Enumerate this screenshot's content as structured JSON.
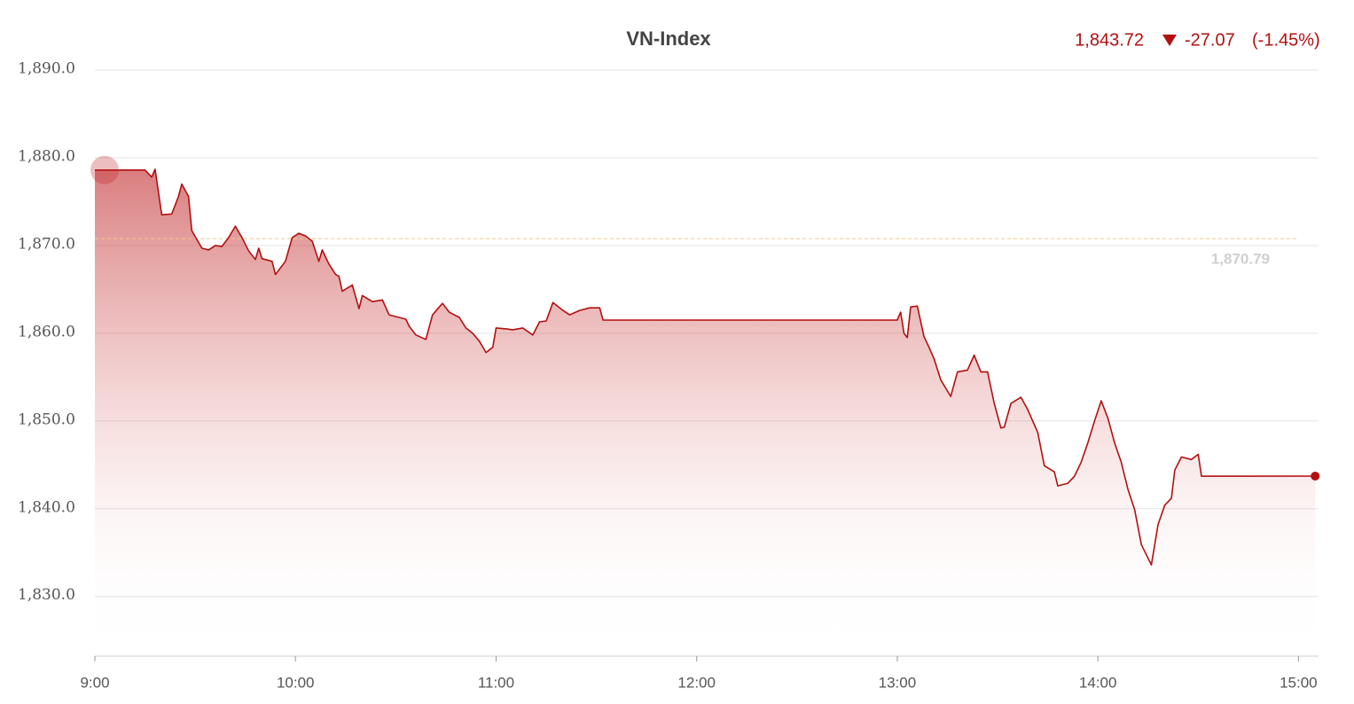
{
  "chart_data": {
    "type": "line",
    "title": "VN-Index",
    "last": "1,843.72",
    "change": "-27.07",
    "change_pct": "(-1.45%)",
    "color": "#b30f0f",
    "reference": {
      "value": 1870.79,
      "label": "1,870.79"
    },
    "xlim": [
      "9:00",
      "15:06"
    ],
    "xticks": [
      "9:00",
      "10:00",
      "11:00",
      "12:00",
      "13:00",
      "14:00",
      "15:00"
    ],
    "ylim": [
      1823.2,
      1890
    ],
    "yticks": [
      {
        "value": 1830,
        "label": "1,830.0"
      },
      {
        "value": 1840,
        "label": "1,840.0"
      },
      {
        "value": 1850,
        "label": "1,850.0"
      },
      {
        "value": 1860,
        "label": "1,860.0"
      },
      {
        "value": 1870,
        "label": "1,870.0"
      },
      {
        "value": 1880,
        "label": "1,880.0"
      },
      {
        "value": 1890,
        "label": "1,890.0"
      }
    ],
    "grid": true,
    "x": [
      "9:00",
      "9:15",
      "9:17",
      "9:18",
      "9:20",
      "9:23",
      "9:25",
      "9:26",
      "9:28",
      "9:29",
      "9:32",
      "9:34",
      "9:36",
      "9:38",
      "9:40",
      "9:42",
      "9:44",
      "9:46",
      "9:48",
      "9:49",
      "9:50",
      "9:53",
      "9:54",
      "9:57",
      "9:59",
      "10:01",
      "10:03",
      "10:05",
      "10:07",
      "10:08",
      "10:10",
      "10:12",
      "10:13",
      "10:14",
      "10:17",
      "10:19",
      "10:20",
      "10:23",
      "10:26",
      "10:28",
      "10:31",
      "10:33",
      "10:34",
      "10:36",
      "10:39",
      "10:41",
      "10:43",
      "10:44",
      "10:46",
      "10:49",
      "10:51",
      "10:53",
      "10:55",
      "10:57",
      "10:59",
      "11:00",
      "11:03",
      "11:05",
      "11:08",
      "11:11",
      "11:13",
      "11:15",
      "11:17",
      "11:20",
      "11:22",
      "11:25",
      "11:28",
      "11:31",
      "11:32",
      "13:00",
      "13:01",
      "13:02",
      "13:03",
      "13:04",
      "13:06",
      "13:08",
      "13:09",
      "13:11",
      "13:13",
      "13:16",
      "13:18",
      "13:21",
      "13:23",
      "13:25",
      "13:27",
      "13:29",
      "13:31",
      "13:32",
      "13:34",
      "13:37",
      "13:39",
      "13:42",
      "13:44",
      "13:47",
      "13:48",
      "13:51",
      "13:53",
      "13:55",
      "13:57",
      "13:59",
      "14:01",
      "14:03",
      "14:05",
      "14:07",
      "14:09",
      "14:11",
      "14:13",
      "14:16",
      "14:18",
      "14:20",
      "14:22",
      "14:23",
      "14:25",
      "14:28",
      "14:30",
      "14:31",
      "15:05"
    ],
    "values": [
      1878.6,
      1878.6,
      1877.8,
      1878.7,
      1873.5,
      1873.6,
      1875.6,
      1877.0,
      1875.6,
      1871.7,
      1869.7,
      1869.5,
      1870.0,
      1869.9,
      1870.9,
      1872.2,
      1870.9,
      1869.4,
      1868.4,
      1869.7,
      1868.5,
      1868.2,
      1866.7,
      1868.2,
      1870.9,
      1871.4,
      1871.1,
      1870.5,
      1868.2,
      1869.5,
      1867.9,
      1866.7,
      1866.5,
      1864.8,
      1865.5,
      1862.8,
      1864.3,
      1863.6,
      1863.8,
      1862.1,
      1861.8,
      1861.6,
      1860.8,
      1859.8,
      1859.3,
      1862.1,
      1863.0,
      1863.4,
      1862.4,
      1861.8,
      1860.6,
      1860.0,
      1859.1,
      1857.8,
      1858.4,
      1860.6,
      1860.5,
      1860.4,
      1860.6,
      1859.8,
      1861.3,
      1861.4,
      1863.5,
      1862.6,
      1862.1,
      1862.6,
      1862.9,
      1862.9,
      1861.5,
      1861.5,
      1862.4,
      1860.0,
      1859.5,
      1863.0,
      1863.1,
      1859.6,
      1858.8,
      1857.1,
      1854.7,
      1852.8,
      1855.6,
      1855.8,
      1857.5,
      1855.6,
      1855.6,
      1852.0,
      1849.2,
      1849.3,
      1852.0,
      1852.7,
      1851.3,
      1848.7,
      1844.9,
      1844.2,
      1842.6,
      1842.9,
      1843.7,
      1845.3,
      1847.5,
      1850.0,
      1852.3,
      1850.3,
      1847.5,
      1845.3,
      1842.2,
      1839.9,
      1835.9,
      1833.6,
      1838.2,
      1840.4,
      1841.2,
      1844.4,
      1845.9,
      1845.6,
      1846.2,
      1843.7,
      1843.72
    ]
  }
}
